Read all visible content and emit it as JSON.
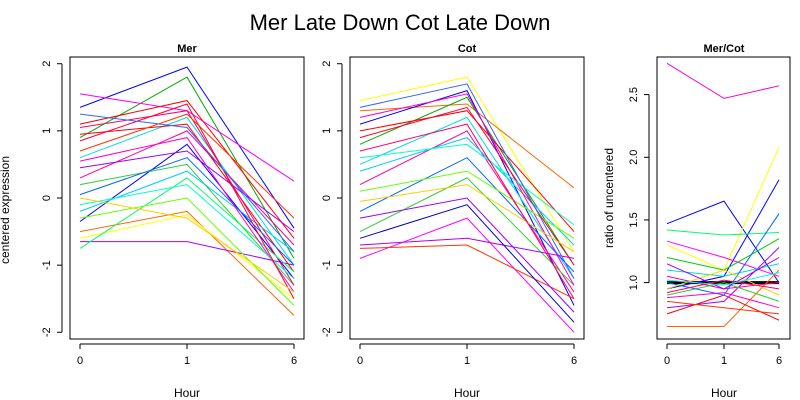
{
  "chart_data": {
    "title": "Mer Late Down Cot Late Down",
    "type": "line",
    "panels": [
      {
        "title": "Mer",
        "xlabel": "Hour",
        "ylabel": "centered expression",
        "x_ticks": [
          "0",
          "1",
          "6"
        ],
        "y_ticks": [
          -2,
          -1,
          0,
          1,
          2
        ],
        "ylim": [
          -2.1,
          2.1
        ],
        "series": [
          {
            "color": "#0000ff",
            "values": [
              1.35,
              1.95,
              -0.45
            ]
          },
          {
            "color": "#00aa00",
            "values": [
              0.9,
              1.8,
              -0.9
            ]
          },
          {
            "color": "#ff00ff",
            "values": [
              1.55,
              1.3,
              0.25
            ]
          },
          {
            "color": "#ff0000",
            "values": [
              1.1,
              1.45,
              -0.6
            ]
          },
          {
            "color": "#00dddd",
            "values": [
              0.6,
              1.2,
              -1.0
            ]
          },
          {
            "color": "#ff0099",
            "values": [
              0.3,
              1.0,
              -0.7
            ]
          },
          {
            "color": "#0000ff",
            "values": [
              -0.35,
              0.8,
              -1.2
            ]
          },
          {
            "color": "#33cc33",
            "values": [
              0.2,
              0.5,
              -1.3
            ]
          },
          {
            "color": "#ff6600",
            "values": [
              -0.5,
              -0.2,
              -1.75
            ]
          },
          {
            "color": "#ffff00",
            "values": [
              -0.6,
              -0.25,
              -1.5
            ]
          },
          {
            "color": "#aa00ff",
            "values": [
              -0.65,
              -0.65,
              -1.0
            ]
          },
          {
            "color": "#ff0000",
            "values": [
              0.95,
              1.1,
              -1.1
            ]
          },
          {
            "color": "#00ccff",
            "values": [
              -0.2,
              0.4,
              -0.8
            ]
          },
          {
            "color": "#ff0066",
            "values": [
              1.05,
              1.3,
              -1.3
            ]
          },
          {
            "color": "#0066ff",
            "values": [
              0.05,
              0.6,
              -1.0
            ]
          },
          {
            "color": "#00ff66",
            "values": [
              -0.75,
              0.3,
              -1.1
            ]
          },
          {
            "color": "#ff00cc",
            "values": [
              0.55,
              0.9,
              -1.4
            ]
          },
          {
            "color": "#ff3300",
            "values": [
              0.7,
              1.25,
              -0.3
            ]
          },
          {
            "color": "#66ff00",
            "values": [
              -0.3,
              0.0,
              -1.6
            ]
          },
          {
            "color": "#9900ff",
            "values": [
              0.45,
              0.7,
              -0.5
            ]
          },
          {
            "color": "#00ffcc",
            "values": [
              -0.1,
              0.2,
              -1.2
            ]
          },
          {
            "color": "#ff0033",
            "values": [
              0.85,
              1.4,
              -1.5
            ]
          },
          {
            "color": "#3366ff",
            "values": [
              1.25,
              1.05,
              -0.8
            ]
          },
          {
            "color": "#ffcc00",
            "values": [
              0.0,
              -0.3,
              -1.4
            ]
          }
        ]
      },
      {
        "title": "Cot",
        "xlabel": "Hour",
        "ylabel": "",
        "x_ticks": [
          "0",
          "1",
          "6"
        ],
        "y_ticks": [
          -2,
          -1,
          0,
          1,
          2
        ],
        "ylim": [
          -2.1,
          2.1
        ],
        "series": [
          {
            "color": "#ffff00",
            "values": [
              1.45,
              1.8,
              -0.8
            ]
          },
          {
            "color": "#ff6600",
            "values": [
              1.3,
              1.4,
              0.15
            ]
          },
          {
            "color": "#0000ff",
            "values": [
              1.1,
              1.6,
              -1.6
            ]
          },
          {
            "color": "#ff00ff",
            "values": [
              -0.9,
              -0.3,
              -2.0
            ]
          },
          {
            "color": "#00aa00",
            "values": [
              0.8,
              1.5,
              -1.0
            ]
          },
          {
            "color": "#00dddd",
            "values": [
              0.5,
              1.2,
              -1.2
            ]
          },
          {
            "color": "#ff0000",
            "values": [
              1.0,
              1.3,
              -0.5
            ]
          },
          {
            "color": "#ff0099",
            "values": [
              0.2,
              1.0,
              -1.4
            ]
          },
          {
            "color": "#0066ff",
            "values": [
              -0.2,
              0.6,
              -1.1
            ]
          },
          {
            "color": "#33cc33",
            "values": [
              -0.5,
              0.3,
              -1.3
            ]
          },
          {
            "color": "#aa00ff",
            "values": [
              -0.7,
              -0.6,
              -0.9
            ]
          },
          {
            "color": "#ff3300",
            "values": [
              -0.75,
              -0.7,
              -1.5
            ]
          },
          {
            "color": "#00ccff",
            "values": [
              0.4,
              0.9,
              -0.7
            ]
          },
          {
            "color": "#ff00cc",
            "values": [
              1.2,
              1.55,
              -1.3
            ]
          },
          {
            "color": "#66ff00",
            "values": [
              0.1,
              0.4,
              -0.6
            ]
          },
          {
            "color": "#9900ff",
            "values": [
              -0.3,
              0.0,
              -1.7
            ]
          },
          {
            "color": "#ff0033",
            "values": [
              0.9,
              1.35,
              -1.0
            ]
          },
          {
            "color": "#00ffcc",
            "values": [
              0.6,
              0.8,
              -0.4
            ]
          },
          {
            "color": "#3366ff",
            "values": [
              1.35,
              1.7,
              -1.2
            ]
          },
          {
            "color": "#ffcc00",
            "values": [
              -0.05,
              0.2,
              -0.8
            ]
          },
          {
            "color": "#ff0066",
            "values": [
              0.7,
              1.1,
              -1.5
            ]
          },
          {
            "color": "#0000cc",
            "values": [
              -0.6,
              -0.1,
              -1.85
            ]
          }
        ]
      },
      {
        "title": "Mer/Cot",
        "xlabel": "Hour",
        "ylabel": "ratio of uncentered",
        "x_ticks": [
          "0",
          "1",
          "6"
        ],
        "y_ticks": [
          1.0,
          1.5,
          2.0,
          2.5
        ],
        "y_tick_labels": [
          "1.0",
          "1.5",
          "2.0",
          "2.5"
        ],
        "ylim": [
          0.55,
          2.8
        ],
        "reference_y": 1.0,
        "series": [
          {
            "color": "#ff00cc",
            "values": [
              2.75,
              2.47,
              2.57
            ]
          },
          {
            "color": "#0000ff",
            "values": [
              1.47,
              1.65,
              1.0
            ]
          },
          {
            "color": "#ffff00",
            "values": [
              1.3,
              1.1,
              2.08
            ]
          },
          {
            "color": "#0000ff",
            "values": [
              0.95,
              1.05,
              1.82
            ]
          },
          {
            "color": "#00ff66",
            "values": [
              1.42,
              1.38,
              1.4
            ]
          },
          {
            "color": "#ff00ff",
            "values": [
              1.33,
              1.2,
              1.05
            ]
          },
          {
            "color": "#00cc00",
            "values": [
              1.2,
              1.1,
              1.35
            ]
          },
          {
            "color": "#ff6600",
            "values": [
              0.65,
              0.65,
              1.1
            ]
          },
          {
            "color": "#aa00ff",
            "values": [
              0.8,
              0.85,
              1.28
            ]
          },
          {
            "color": "#ff0000",
            "values": [
              0.75,
              0.9,
              0.7
            ]
          },
          {
            "color": "#00dddd",
            "values": [
              1.1,
              1.05,
              1.15
            ]
          },
          {
            "color": "#ff0099",
            "values": [
              1.05,
              0.95,
              1.0
            ]
          },
          {
            "color": "#33cc33",
            "values": [
              0.9,
              1.0,
              0.85
            ]
          },
          {
            "color": "#0066ff",
            "values": [
              1.0,
              0.9,
              1.55
            ]
          },
          {
            "color": "#ff3300",
            "values": [
              0.85,
              0.8,
              0.75
            ]
          },
          {
            "color": "#ffcc00",
            "values": [
              0.95,
              1.1,
              0.9
            ]
          },
          {
            "color": "#9900ff",
            "values": [
              1.15,
              0.95,
              1.2
            ]
          },
          {
            "color": "#ff0066",
            "values": [
              0.92,
              1.02,
              0.95
            ]
          },
          {
            "color": "#00ffcc",
            "values": [
              1.02,
              0.98,
              1.08
            ]
          },
          {
            "color": "#ff00cc",
            "values": [
              0.88,
              0.92,
              0.8
            ]
          }
        ]
      }
    ]
  }
}
